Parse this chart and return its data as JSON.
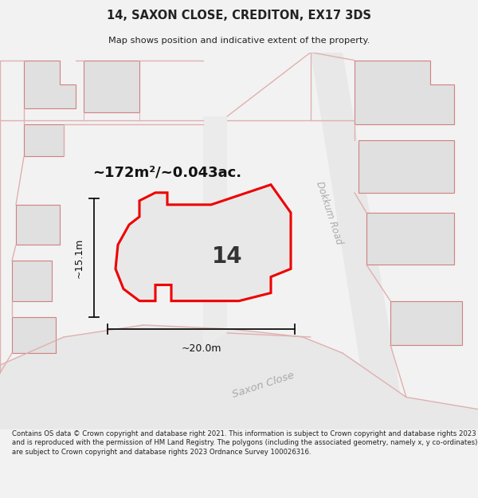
{
  "title": "14, SAXON CLOSE, CREDITON, EX17 3DS",
  "subtitle": "Map shows position and indicative extent of the property.",
  "area_label": "~172m²/~0.043ac.",
  "width_label": "~20.0m",
  "height_label": "~15.1m",
  "plot_number": "14",
  "footer": "Contains OS data © Crown copyright and database right 2021. This information is subject to Crown copyright and database rights 2023 and is reproduced with the permission of HM Land Registry. The polygons (including the associated geometry, namely x, y co-ordinates) are subject to Crown copyright and database rights 2023 Ordnance Survey 100026316.",
  "bg_color": "#f2f2f2",
  "map_bg": "#ffffff",
  "road_fill": "#e8e8e8",
  "road_line": "#e0b0b0",
  "building_fill": "#e0e0e0",
  "building_edge": "#d08080",
  "highlight_fill": "#e8e8e8",
  "highlight_edge": "#ee0000",
  "label_color": "#aaaaaa",
  "dim_color": "#111111",
  "text_color": "#222222"
}
